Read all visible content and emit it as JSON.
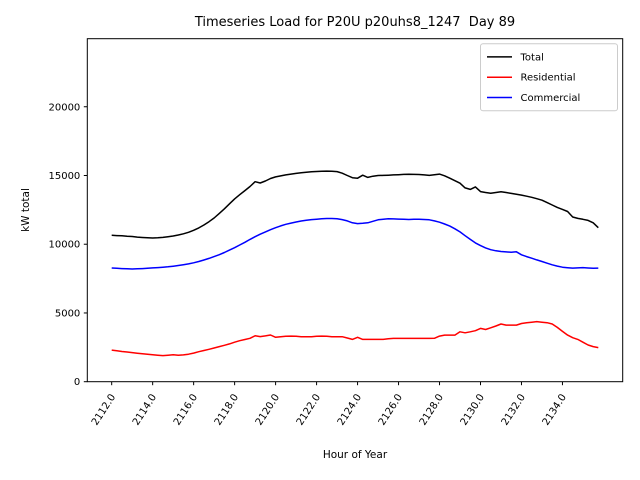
{
  "title": "Timeseries Load for P20U p20uhs8_1247  Day 89",
  "xlabel": "Hour of Year",
  "ylabel": "kW total",
  "legend": {
    "position": "upper right",
    "entries": [
      {
        "label": "Total",
        "color": "#000000"
      },
      {
        "label": "Residential",
        "color": "#ff0000"
      },
      {
        "label": "Commercial",
        "color": "#0000ff"
      }
    ]
  },
  "chart_data": {
    "type": "line",
    "title": "Timeseries Load for P20U p20uhs8_1247  Day 89",
    "xlabel": "Hour of Year",
    "ylabel": "kW total",
    "grid": false,
    "legend_position": "upper right",
    "xlim": [
      2110.81,
      2136.94
    ],
    "ylim": [
      0,
      24950
    ],
    "x_start": 2112.0,
    "x_step": 0.25,
    "x_ticks": {
      "values": [
        2112,
        2114,
        2116,
        2118,
        2120,
        2122,
        2124,
        2126,
        2128,
        2130,
        2132,
        2134
      ],
      "labels": [
        "2112.0",
        "2114.0",
        "2116.0",
        "2118.0",
        "2120.0",
        "2122.0",
        "2124.0",
        "2126.0",
        "2128.0",
        "2130.0",
        "2132.0",
        "2134.0"
      ],
      "rotation_deg": 57
    },
    "y_ticks": {
      "values": [
        0,
        5000,
        10000,
        15000,
        20000
      ],
      "labels": [
        "0",
        "5000",
        "10000",
        "15000",
        "20000"
      ]
    },
    "series": [
      {
        "name": "Total",
        "color": "#000000",
        "values": [
          10650,
          10630,
          10610,
          10580,
          10560,
          10520,
          10490,
          10470,
          10450,
          10470,
          10500,
          10550,
          10600,
          10670,
          10760,
          10870,
          11010,
          11190,
          11400,
          11640,
          11910,
          12240,
          12580,
          12940,
          13300,
          13600,
          13900,
          14200,
          14550,
          14450,
          14600,
          14780,
          14900,
          14970,
          15040,
          15100,
          15150,
          15200,
          15240,
          15270,
          15290,
          15310,
          15320,
          15310,
          15280,
          15170,
          15000,
          14840,
          14800,
          15020,
          14860,
          14950,
          15000,
          15010,
          15020,
          15040,
          15060,
          15080,
          15090,
          15080,
          15070,
          15040,
          15010,
          15050,
          15100,
          14980,
          14800,
          14620,
          14440,
          14100,
          13990,
          14170,
          13830,
          13760,
          13710,
          13760,
          13820,
          13760,
          13700,
          13640,
          13570,
          13490,
          13410,
          13310,
          13200,
          13030,
          12850,
          12680,
          12530,
          12380,
          11980,
          11880,
          11810,
          11730,
          11560,
          11200
        ]
      },
      {
        "name": "Residential",
        "color": "#ff0000",
        "values": [
          2300,
          2250,
          2200,
          2160,
          2120,
          2070,
          2030,
          1990,
          1960,
          1930,
          1900,
          1930,
          1960,
          1920,
          1950,
          2000,
          2080,
          2180,
          2270,
          2360,
          2450,
          2550,
          2650,
          2750,
          2870,
          2980,
          3070,
          3160,
          3340,
          3280,
          3330,
          3400,
          3230,
          3270,
          3300,
          3320,
          3300,
          3270,
          3270,
          3270,
          3300,
          3320,
          3300,
          3270,
          3270,
          3270,
          3180,
          3080,
          3230,
          3080,
          3080,
          3080,
          3080,
          3080,
          3120,
          3150,
          3150,
          3150,
          3150,
          3150,
          3150,
          3150,
          3150,
          3160,
          3320,
          3390,
          3390,
          3390,
          3630,
          3560,
          3630,
          3710,
          3880,
          3800,
          3920,
          4050,
          4200,
          4120,
          4120,
          4120,
          4230,
          4290,
          4330,
          4370,
          4330,
          4290,
          4200,
          3950,
          3660,
          3390,
          3200,
          3080,
          2870,
          2670,
          2550,
          2480
        ]
      },
      {
        "name": "Commercial",
        "color": "#0000ff",
        "values": [
          8270,
          8250,
          8230,
          8210,
          8200,
          8210,
          8230,
          8250,
          8280,
          8300,
          8330,
          8360,
          8400,
          8450,
          8510,
          8570,
          8650,
          8740,
          8850,
          8970,
          9100,
          9240,
          9400,
          9570,
          9750,
          9940,
          10140,
          10350,
          10550,
          10730,
          10900,
          11060,
          11200,
          11330,
          11450,
          11540,
          11620,
          11690,
          11740,
          11790,
          11820,
          11850,
          11870,
          11870,
          11860,
          11790,
          11700,
          11560,
          11500,
          11520,
          11560,
          11670,
          11780,
          11820,
          11850,
          11840,
          11830,
          11810,
          11800,
          11810,
          11810,
          11800,
          11780,
          11700,
          11600,
          11470,
          11320,
          11120,
          10900,
          10620,
          10350,
          10100,
          9900,
          9730,
          9600,
          9520,
          9470,
          9440,
          9420,
          9450,
          9230,
          9100,
          8980,
          8860,
          8740,
          8620,
          8500,
          8410,
          8330,
          8290,
          8260,
          8280,
          8300,
          8270,
          8250,
          8260
        ]
      }
    ]
  }
}
